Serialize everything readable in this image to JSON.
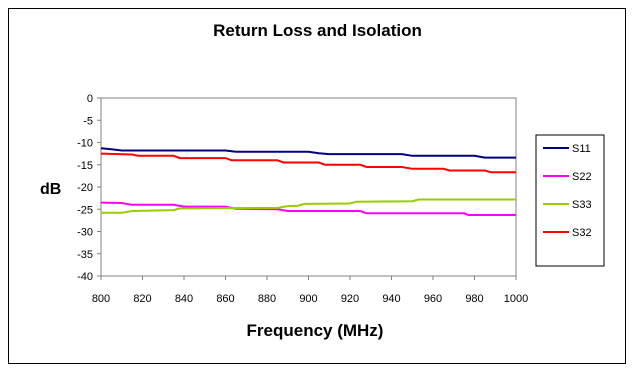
{
  "chart_data": {
    "type": "line",
    "title": "Return Loss and Isolation",
    "xlabel": "Frequency (MHz)",
    "ylabel": "dB",
    "xlim": [
      800,
      1000
    ],
    "ylim": [
      -40,
      0
    ],
    "xticks": [
      "800",
      "820",
      "840",
      "860",
      "880",
      "900",
      "920",
      "940",
      "960",
      "980",
      "1000"
    ],
    "yticks": [
      "0",
      "-5",
      "-10",
      "-15",
      "-20",
      "-25",
      "-30",
      "-35",
      "-40"
    ],
    "grid": false,
    "legend_position": "right",
    "series": [
      {
        "name": "S11",
        "color": "#000080",
        "points": [
          [
            800,
            -11.3
          ],
          [
            805,
            -11.5
          ],
          [
            810,
            -11.8
          ],
          [
            860,
            -11.8
          ],
          [
            865,
            -12.1
          ],
          [
            900,
            -12.1
          ],
          [
            905,
            -12.4
          ],
          [
            910,
            -12.6
          ],
          [
            945,
            -12.6
          ],
          [
            950,
            -13.0
          ],
          [
            980,
            -13.0
          ],
          [
            985,
            -13.4
          ],
          [
            1000,
            -13.4
          ]
        ]
      },
      {
        "name": "S22",
        "color": "#FF00FF",
        "points": [
          [
            800,
            -23.5
          ],
          [
            810,
            -23.6
          ],
          [
            815,
            -24.0
          ],
          [
            835,
            -24.0
          ],
          [
            840,
            -24.4
          ],
          [
            860,
            -24.4
          ],
          [
            865,
            -24.9
          ],
          [
            885,
            -25.0
          ],
          [
            890,
            -25.4
          ],
          [
            925,
            -25.4
          ],
          [
            928,
            -25.9
          ],
          [
            975,
            -25.9
          ],
          [
            977,
            -26.3
          ],
          [
            1000,
            -26.3
          ]
        ]
      },
      {
        "name": "S33",
        "color": "#99CC00",
        "points": [
          [
            800,
            -25.8
          ],
          [
            810,
            -25.8
          ],
          [
            815,
            -25.4
          ],
          [
            835,
            -25.2
          ],
          [
            838,
            -24.8
          ],
          [
            885,
            -24.7
          ],
          [
            890,
            -24.3
          ],
          [
            895,
            -24.2
          ],
          [
            898,
            -23.8
          ],
          [
            920,
            -23.7
          ],
          [
            923,
            -23.3
          ],
          [
            950,
            -23.2
          ],
          [
            953,
            -22.8
          ],
          [
            1000,
            -22.8
          ]
        ]
      },
      {
        "name": "S32",
        "color": "#FF0000",
        "points": [
          [
            800,
            -12.5
          ],
          [
            815,
            -12.7
          ],
          [
            818,
            -13.0
          ],
          [
            835,
            -13.0
          ],
          [
            838,
            -13.5
          ],
          [
            860,
            -13.5
          ],
          [
            863,
            -14.0
          ],
          [
            885,
            -14.0
          ],
          [
            888,
            -14.5
          ],
          [
            905,
            -14.5
          ],
          [
            908,
            -15.0
          ],
          [
            925,
            -15.0
          ],
          [
            928,
            -15.5
          ],
          [
            945,
            -15.5
          ],
          [
            950,
            -15.9
          ],
          [
            965,
            -15.9
          ],
          [
            968,
            -16.3
          ],
          [
            985,
            -16.3
          ],
          [
            988,
            -16.7
          ],
          [
            1000,
            -16.7
          ]
        ]
      }
    ]
  }
}
